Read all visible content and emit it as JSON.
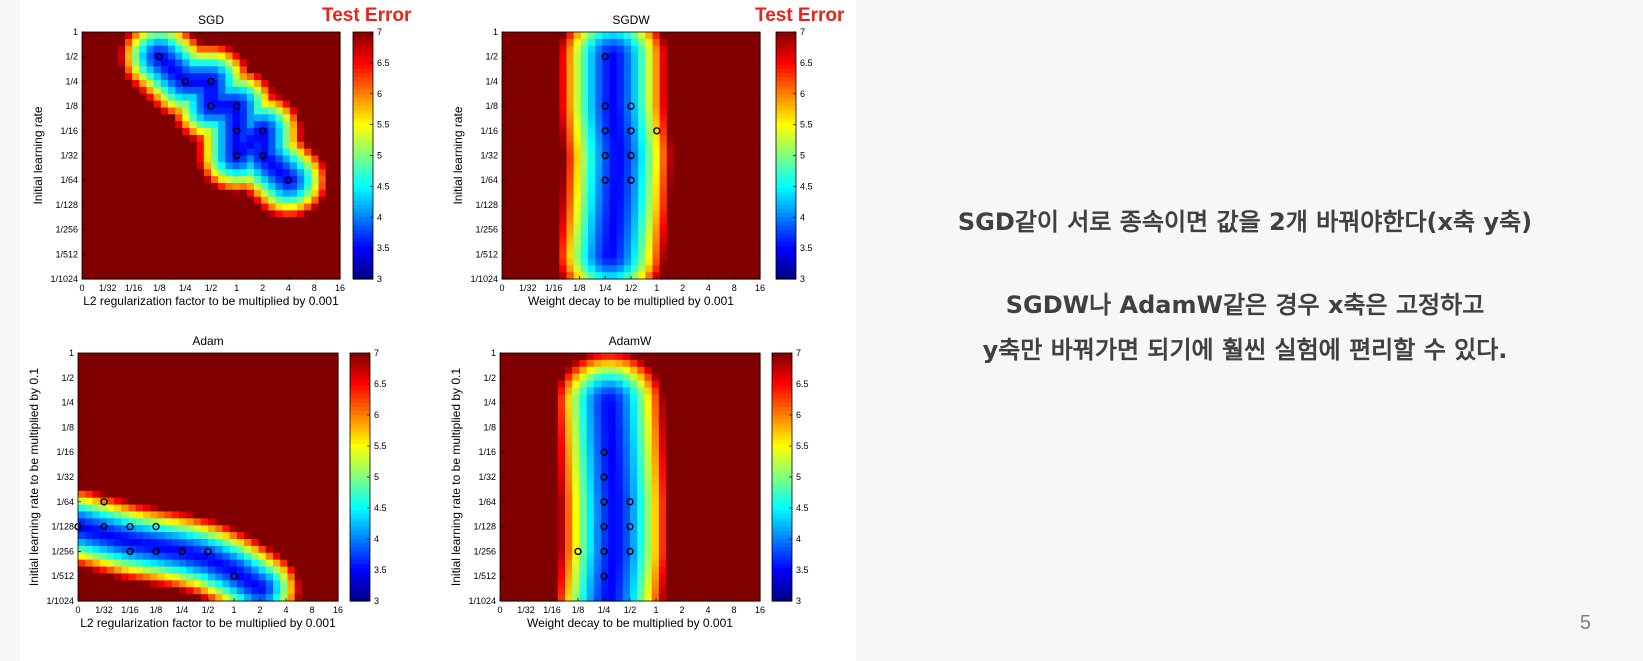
{
  "slide": {
    "test_error_label": "Test Error",
    "note_line_1": "SGD같이 서로 종속이면 값을 2개 바꿔야한다(x축 y축)",
    "note_line_2": "SGDW나 AdamW같은 경우 x축은 고정하고",
    "note_line_3": "y축만 바꿔가면 되기에 훨씬 실험에 편리할 수 있다.",
    "page_number": "5",
    "accent_color": "#e8231b"
  },
  "chart_data": [
    {
      "type": "heatmap",
      "title": "SGD",
      "xlabel": "L2 regularization factor to be multiplied by 0.001",
      "ylabel": "Initial learning rate",
      "x_ticks": [
        "0",
        "1/32",
        "1/16",
        "1/8",
        "1/4",
        "1/2",
        "1",
        "2",
        "4",
        "8",
        "16"
      ],
      "y_ticks": [
        "1",
        "1/2",
        "1/4",
        "1/8",
        "1/16",
        "1/32",
        "1/64",
        "1/128",
        "1/256",
        "1/512",
        "1/1024"
      ],
      "colorbar_ticks": [
        "7",
        "6.5",
        "6",
        "5.5",
        "5",
        "4.5",
        "4",
        "3.5",
        "3"
      ],
      "colorbar_range": [
        3,
        7
      ],
      "minimum_line": [
        [
          3,
          1
        ],
        [
          4,
          2
        ],
        [
          5,
          2
        ],
        [
          5,
          3
        ],
        [
          6,
          3
        ],
        [
          6,
          4
        ],
        [
          6,
          5
        ],
        [
          7,
          4
        ],
        [
          7,
          5
        ],
        [
          8,
          6
        ]
      ],
      "minimum_width": 1.7,
      "markers": [
        [
          "1/8",
          "1/2"
        ],
        [
          "1/4",
          "1/4"
        ],
        [
          "1/2",
          "1/4"
        ],
        [
          "1/2",
          "1/8"
        ],
        [
          "1",
          "1/8"
        ],
        [
          "1",
          "1/16"
        ],
        [
          "2",
          "1/16"
        ],
        [
          "1",
          "1/32"
        ],
        [
          "2",
          "1/32"
        ],
        [
          "4",
          "1/64"
        ]
      ]
    },
    {
      "type": "heatmap",
      "title": "SGDW",
      "xlabel": "Weight decay to be multiplied by 0.001",
      "ylabel": "Initial learning rate",
      "x_ticks": [
        "0",
        "1/32",
        "1/16",
        "1/8",
        "1/4",
        "1/2",
        "1",
        "2",
        "4",
        "8",
        "16"
      ],
      "y_ticks": [
        "1",
        "1/2",
        "1/4",
        "1/8",
        "1/16",
        "1/32",
        "1/64",
        "1/128",
        "1/256",
        "1/512",
        "1/1024"
      ],
      "colorbar_ticks": [
        "7",
        "6.5",
        "6",
        "5.5",
        "5",
        "4.5",
        "4",
        "3.5",
        "3"
      ],
      "colorbar_range": [
        3,
        7
      ],
      "minimum_line": [
        [
          4.3,
          1
        ],
        [
          4.3,
          3
        ],
        [
          4.5,
          5
        ],
        [
          4.4,
          7
        ],
        [
          4.2,
          9
        ]
      ],
      "minimum_width": 2.3,
      "markers": [
        [
          "1/4",
          "1/2"
        ],
        [
          "1/4",
          "1/8"
        ],
        [
          "1/2",
          "1/8"
        ],
        [
          "1/4",
          "1/16"
        ],
        [
          "1/2",
          "1/16"
        ],
        [
          "1",
          "1/16"
        ],
        [
          "1/4",
          "1/32"
        ],
        [
          "1/2",
          "1/32"
        ],
        [
          "1/4",
          "1/64"
        ],
        [
          "1/2",
          "1/64"
        ]
      ]
    },
    {
      "type": "heatmap",
      "title": "Adam",
      "xlabel": "L2 regularization factor to be multiplied by 0.001",
      "ylabel": "Initial learning rate to be multiplied by 0.1",
      "x_ticks": [
        "0",
        "1/32",
        "1/16",
        "1/8",
        "1/4",
        "1/2",
        "1",
        "2",
        "4",
        "8",
        "16"
      ],
      "y_ticks": [
        "1",
        "1/2",
        "1/4",
        "1/8",
        "1/16",
        "1/32",
        "1/64",
        "1/128",
        "1/256",
        "1/512",
        "1/1024"
      ],
      "colorbar_ticks": [
        "7",
        "6.5",
        "6",
        "5.5",
        "5",
        "4.5",
        "4",
        "3.5",
        "3"
      ],
      "colorbar_range": [
        3,
        7
      ],
      "minimum_line": [
        [
          0,
          7
        ],
        [
          1,
          7.3
        ],
        [
          2,
          7.6
        ],
        [
          3,
          7.8
        ],
        [
          4,
          8
        ],
        [
          5,
          8.3
        ],
        [
          6,
          8.8
        ],
        [
          7,
          9.5
        ]
      ],
      "minimum_width": 1.7,
      "markers": [
        [
          "1/32",
          "1/64"
        ],
        [
          "0",
          "1/128"
        ],
        [
          "1/32",
          "1/128"
        ],
        [
          "1/16",
          "1/128"
        ],
        [
          "1/8",
          "1/128"
        ],
        [
          "1/16",
          "1/256"
        ],
        [
          "1/8",
          "1/256"
        ],
        [
          "1/4",
          "1/256"
        ],
        [
          "1/2",
          "1/256"
        ],
        [
          "1",
          "1/512"
        ]
      ]
    },
    {
      "type": "heatmap",
      "title": "AdamW",
      "xlabel": "Weight decay to be multiplied by 0.001",
      "ylabel": "Initial learning rate to be multiplied by 0.1",
      "x_ticks": [
        "0",
        "1/32",
        "1/16",
        "1/8",
        "1/4",
        "1/2",
        "1",
        "2",
        "4",
        "8",
        "16"
      ],
      "y_ticks": [
        "1",
        "1/2",
        "1/4",
        "1/8",
        "1/16",
        "1/32",
        "1/64",
        "1/128",
        "1/256",
        "1/512",
        "1/1024"
      ],
      "colorbar_ticks": [
        "7",
        "6.5",
        "6",
        "5.5",
        "5",
        "4.5",
        "4",
        "3.5",
        "3"
      ],
      "colorbar_range": [
        3,
        7
      ],
      "minimum_line": [
        [
          4.2,
          2
        ],
        [
          4.3,
          4
        ],
        [
          4.4,
          6
        ],
        [
          4.4,
          8
        ],
        [
          4.2,
          10
        ]
      ],
      "minimum_width": 2.3,
      "markers": [
        [
          "1/4",
          "1/16"
        ],
        [
          "1/4",
          "1/32"
        ],
        [
          "1/4",
          "1/64"
        ],
        [
          "1/2",
          "1/64"
        ],
        [
          "1/4",
          "1/128"
        ],
        [
          "1/2",
          "1/128"
        ],
        [
          "1/8",
          "1/256"
        ],
        [
          "1/4",
          "1/256"
        ],
        [
          "1/2",
          "1/256"
        ],
        [
          "1/4",
          "1/512"
        ]
      ]
    }
  ]
}
